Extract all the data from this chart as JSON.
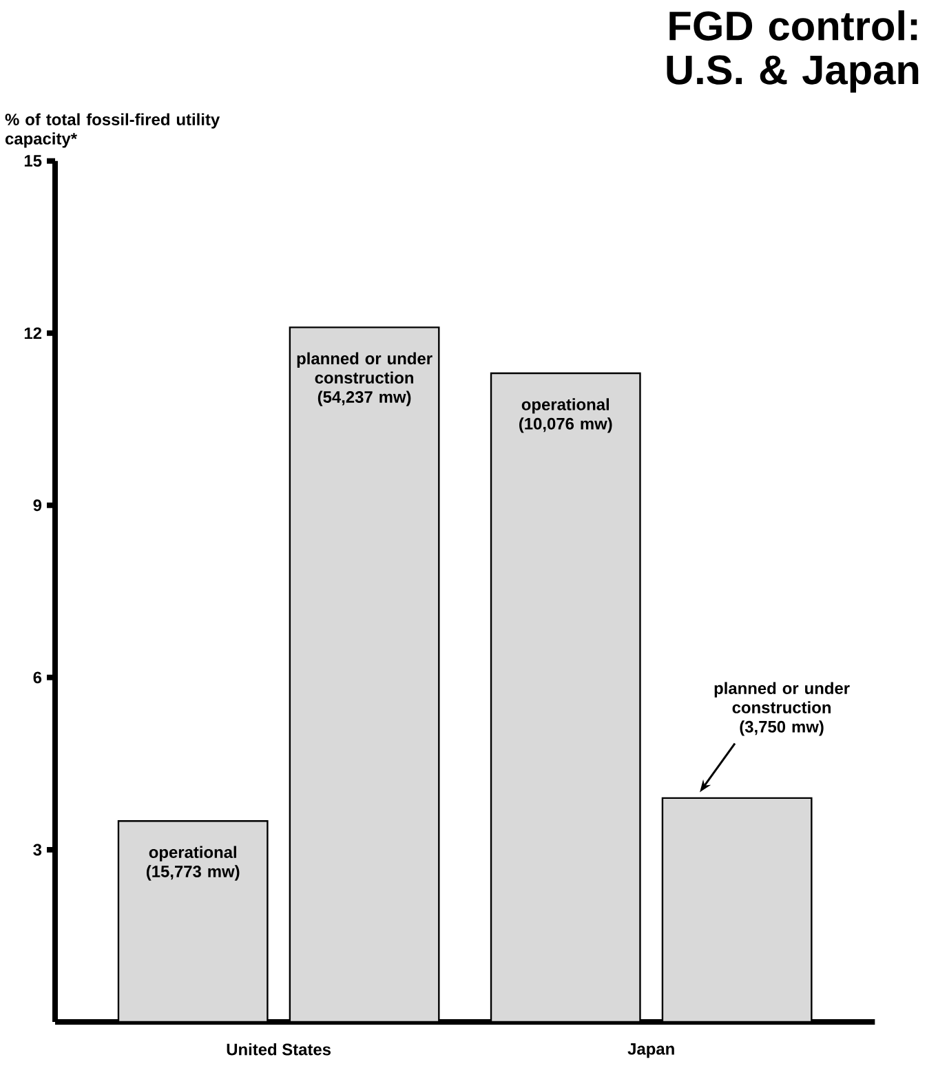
{
  "chart_data": {
    "type": "bar",
    "title": "FGD control: U.S. & Japan",
    "ylabel": "% of total fossil-fired utility capacity*",
    "categories": [
      "United States",
      "Japan"
    ],
    "series": [
      {
        "color": "#d9d9d9",
        "values": [
          3.5,
          11.3
        ]
      },
      {
        "color": "#d9d9d9",
        "values": [
          12.1,
          3.9
        ]
      }
    ],
    "ylim": [
      0,
      15
    ],
    "yticks": [
      3,
      6,
      9,
      12,
      15
    ],
    "annotations": [
      "operational (15,773 mw)",
      "planned or under construction (54,237 mw)",
      "operational (10,076 mw)",
      "planned or under construction (3,750 mw)"
    ]
  }
}
